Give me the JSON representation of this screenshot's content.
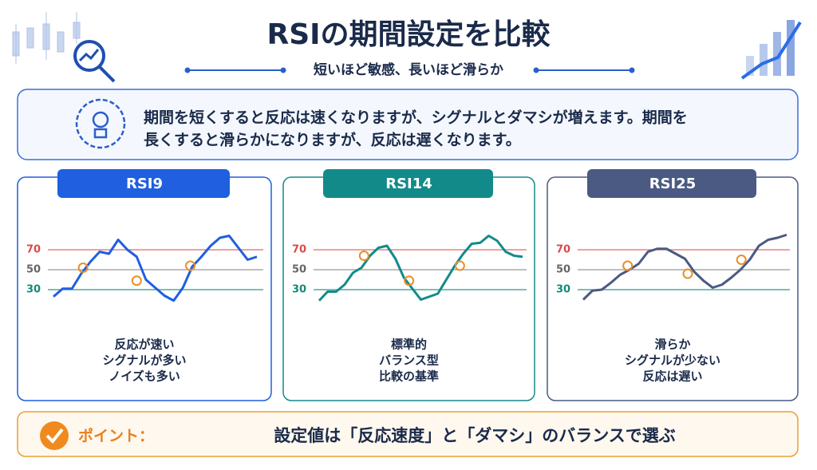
{
  "header": {
    "title": "RSIの期間設定を比較",
    "subtitle": "短いほど敏感、長いほど滑らか"
  },
  "intro": {
    "lines": [
      "期間を短くすると反応は速くなりますが、シグナルとダマシが増えます。期間を",
      "長くすると滑らかになりますが、反応は遅くなります。"
    ]
  },
  "chart_data": [
    {
      "type": "line",
      "title": "RSI9",
      "color": "#1f5fe0",
      "ylim": [
        10,
        90
      ],
      "yticks": [
        70,
        50,
        30
      ],
      "values": [
        23,
        31,
        31,
        46,
        58,
        68,
        66,
        80,
        70,
        63,
        40,
        32,
        24,
        19,
        32,
        53,
        63,
        74,
        82,
        84,
        72,
        60,
        63
      ],
      "signals": {
        "color": "#e8902a",
        "x": [
          3.2,
          9,
          14.8
        ],
        "values": [
          52,
          39,
          54
        ]
      },
      "annotation": [
        "反応が速い",
        "シグナルが多い",
        "ノイズも多い"
      ]
    },
    {
      "type": "line",
      "title": "RSI14",
      "color": "#138a8a",
      "ylim": [
        10,
        90
      ],
      "yticks": [
        70,
        50,
        30
      ],
      "values": [
        19,
        28,
        28,
        35,
        47,
        52,
        64,
        72,
        74,
        61,
        42,
        31,
        20,
        23,
        26,
        40,
        54,
        66,
        76,
        77,
        84,
        79,
        68,
        64,
        63
      ],
      "signals": {
        "color": "#e8902a",
        "x": [
          5.3,
          10.6,
          16.6
        ],
        "values": [
          64,
          39,
          54
        ]
      },
      "annotation": [
        "標準的",
        "バランス型",
        "比較の基準"
      ]
    },
    {
      "type": "line",
      "title": "RSI25",
      "color": "#4a5a82",
      "ylim": [
        10,
        90
      ],
      "yticks": [
        70,
        50,
        30
      ],
      "values": [
        20,
        29,
        30,
        37,
        45,
        50,
        56,
        68,
        71,
        71,
        66,
        61,
        48,
        39,
        32,
        35,
        42,
        50,
        60,
        74,
        80,
        82,
        85
      ],
      "signals": {
        "color": "#e8902a",
        "x": [
          4.8,
          11.3,
          17.1
        ],
        "values": [
          54,
          46,
          60
        ]
      },
      "annotation": [
        "滑らか",
        "シグナルが少ない",
        "反応は遅い"
      ]
    }
  ],
  "footer": {
    "label": "ポイント：",
    "message": "設定値は「反応速度」と「ダマシ」のバランスで選ぶ"
  }
}
